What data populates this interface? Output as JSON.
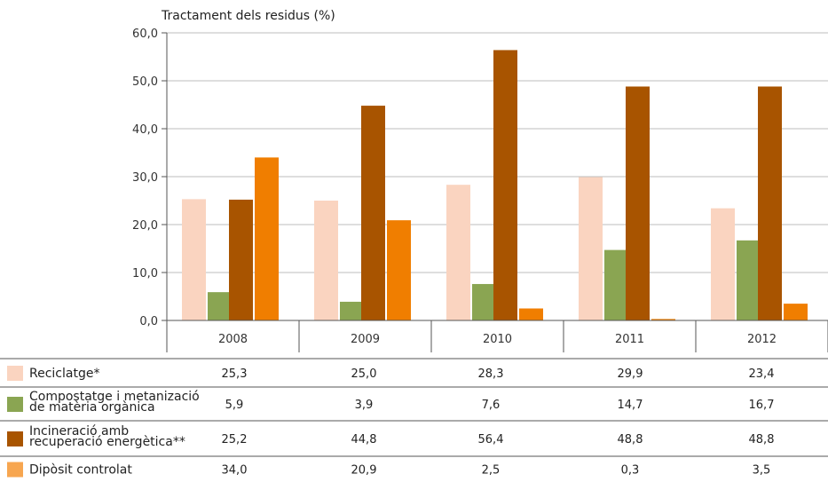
{
  "chart_data": {
    "type": "bar",
    "title": "Tractament dels residus (%)",
    "categories": [
      "2008",
      "2009",
      "2010",
      "2011",
      "2012"
    ],
    "ylim": [
      0,
      60
    ],
    "yticks": [
      "0,0",
      "10,0",
      "20,0",
      "30,0",
      "40,0",
      "50,0",
      "60,0"
    ],
    "grid": true,
    "legend": "table-below",
    "series": [
      {
        "name": "Reciclatge*",
        "label_lines": [
          "Reciclatge*"
        ],
        "color": "#fad4c0",
        "values": [
          25.3,
          25.0,
          28.3,
          29.9,
          23.4
        ],
        "value_labels": [
          "25,3",
          "25,0",
          "28,3",
          "29,9",
          "23,4"
        ]
      },
      {
        "name": "Compostatge i metanizació de matèria orgànica",
        "label_lines": [
          "Compostatge i metanizació",
          "de matèria orgànica"
        ],
        "color": "#8aa552",
        "values": [
          5.9,
          3.9,
          7.6,
          14.7,
          16.7
        ],
        "value_labels": [
          "5,9",
          "3,9",
          "7,6",
          "14,7",
          "16,7"
        ]
      },
      {
        "name": "Incineració amb recuperació energètica**",
        "label_lines": [
          "Incineració amb",
          "recuperació energètica**"
        ],
        "color": "#a85400",
        "values": [
          25.2,
          44.8,
          56.4,
          48.8,
          48.8
        ],
        "value_labels": [
          "25,2",
          "44,8",
          "56,4",
          "48,8",
          "48,8"
        ]
      },
      {
        "name": "Dipòsit controlat",
        "label_lines": [
          "Dipòsit controlat"
        ],
        "color": "#f07e00",
        "legend_color": "#f7a650",
        "values": [
          34.0,
          20.9,
          2.5,
          0.3,
          3.5
        ],
        "value_labels": [
          "34,0",
          "20,9",
          "2,5",
          "0,3",
          "3,5"
        ]
      }
    ]
  }
}
